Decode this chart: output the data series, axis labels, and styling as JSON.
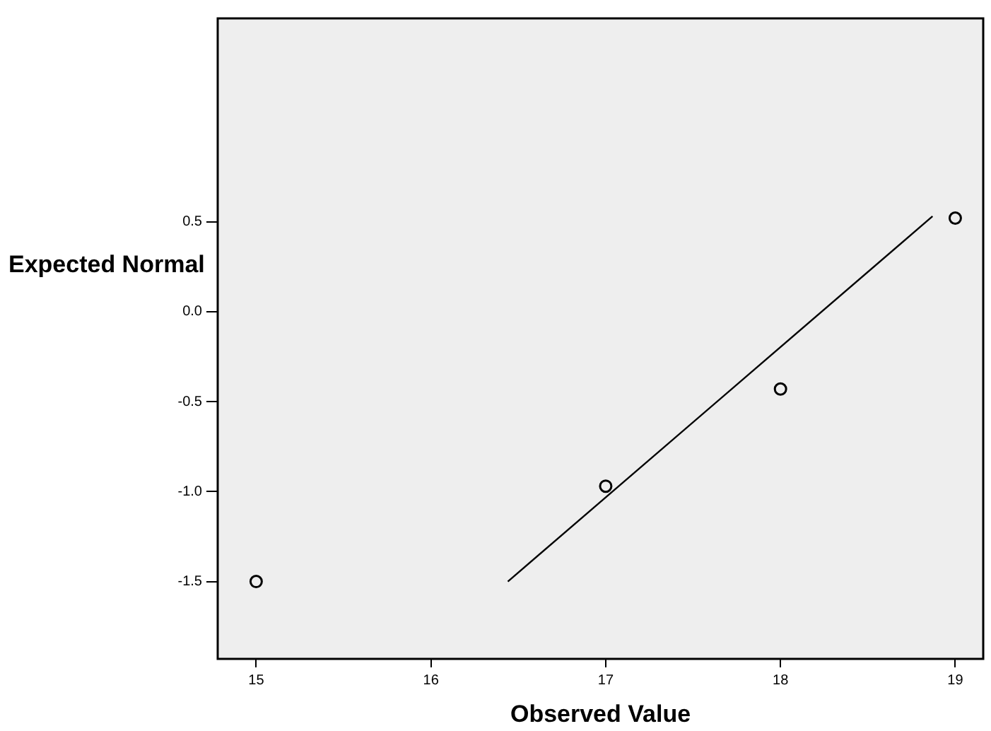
{
  "chart_data": {
    "type": "scatter",
    "xlabel": "Observed Value",
    "ylabel": "Expected Normal",
    "xlim": [
      14.78,
      19.16
    ],
    "ylim": [
      -1.93,
      1.63
    ],
    "xticks": [
      15,
      16,
      17,
      18,
      19
    ],
    "yticks": [
      0.5,
      {
        "value": 0,
        "label": "0.0"
      },
      -0.5,
      {
        "value": -1,
        "label": "-1.0"
      },
      -1.5
    ],
    "grid": false,
    "series": [
      {
        "color": "#000000",
        "marker": "circle",
        "x": [
          15,
          17,
          18,
          19
        ],
        "values": [
          -1.5,
          -0.97,
          -0.43,
          0.52
        ]
      },
      {
        "type": "line",
        "marker": "none",
        "color": "#000000",
        "x": [
          16.44,
          18.87
        ],
        "values": [
          -1.5,
          0.53
        ]
      }
    ]
  }
}
